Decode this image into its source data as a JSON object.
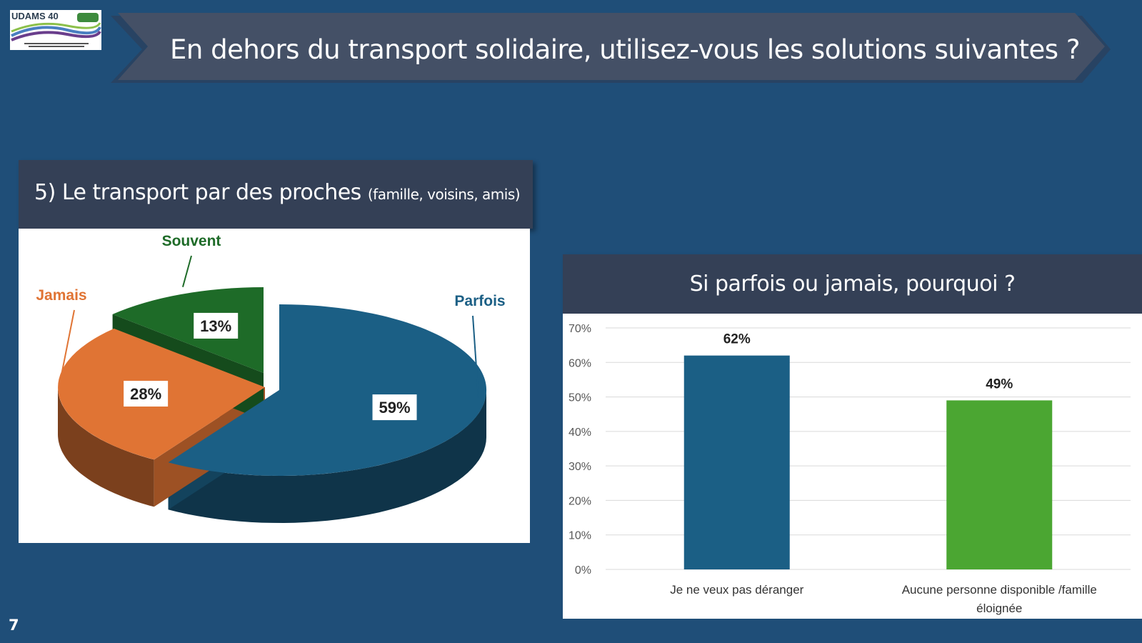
{
  "logo": {
    "text": "UDAMS 40"
  },
  "banner": {
    "title": "En dehors du transport solidaire, utilisez-vous les solutions suivantes ?"
  },
  "pie_panel": {
    "title_main": "5) Le transport par des proches",
    "title_small": "(famille, voisins, amis)"
  },
  "bar_panel": {
    "title": "Si parfois ou jamais, pourquoi ?"
  },
  "page_number": "7",
  "colors": {
    "background": "#1f4e78",
    "panel_header": "#344056",
    "parfois": "#1b5f85",
    "jamais": "#e07434",
    "souvent": "#1e6b28",
    "bar1": "#1b5f85",
    "bar2": "#4ba632"
  },
  "chart_data": [
    {
      "type": "pie",
      "title": "",
      "slices": [
        {
          "label": "Parfois",
          "value": 59,
          "value_label": "59%",
          "color": "#1b5f85"
        },
        {
          "label": "Jamais",
          "value": 28,
          "value_label": "28%",
          "color": "#e07434"
        },
        {
          "label": "Souvent",
          "value": 13,
          "value_label": "13%",
          "color": "#1e6b28"
        }
      ],
      "style": "3d-exploded"
    },
    {
      "type": "bar",
      "title": "",
      "categories": [
        "Je ne veux pas déranger",
        "Aucune personne disponible /famille éloignée"
      ],
      "category_lines": [
        [
          "Je ne veux pas déranger"
        ],
        [
          "Aucune personne disponible /famille",
          "éloignée"
        ]
      ],
      "values": [
        62,
        49
      ],
      "value_labels": [
        "62%",
        "49%"
      ],
      "colors": [
        "#1b5f85",
        "#4ba632"
      ],
      "ylim": [
        0,
        70
      ],
      "yticks": [
        "0%",
        "10%",
        "20%",
        "30%",
        "40%",
        "50%",
        "60%",
        "70%"
      ],
      "grid": true,
      "xlabel": "",
      "ylabel": ""
    }
  ]
}
